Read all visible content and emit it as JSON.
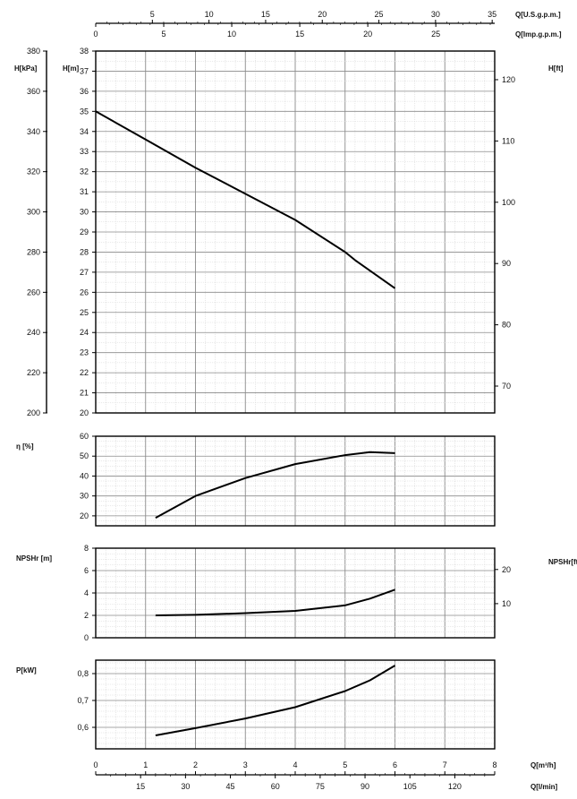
{
  "chart_data": [
    {
      "type": "line",
      "panel": "head",
      "ylabel": "H[m]",
      "ylim": [
        20,
        38
      ],
      "xlim": [
        0,
        8
      ],
      "left_axis_label": "H[kPa]",
      "left_axis_ticks": [
        "200",
        "220",
        "240",
        "260",
        "280",
        "300",
        "320",
        "340",
        "360",
        "380"
      ],
      "right_axis_label": "H[ft]",
      "right_axis_ticks": [
        "70",
        "80",
        "90",
        "100",
        "110",
        "120"
      ],
      "top_axes": [
        {
          "label": "Q[U.S.g.p.m.]",
          "ticks": [
            "5",
            "10",
            "15",
            "20",
            "25",
            "30",
            "35"
          ]
        },
        {
          "label": "Q[Imp.g.p.m.]",
          "ticks": [
            "0",
            "5",
            "10",
            "15",
            "20",
            "25"
          ]
        }
      ],
      "y_ticks": [
        "20",
        "21",
        "22",
        "23",
        "24",
        "25",
        "26",
        "27",
        "28",
        "29",
        "30",
        "31",
        "32",
        "33",
        "34",
        "35",
        "36",
        "37",
        "38"
      ],
      "grid": true,
      "series": [
        {
          "x": [
            0,
            1,
            2,
            3,
            4,
            5,
            5.2,
            6
          ],
          "y": [
            35,
            33.6,
            32.2,
            30.9,
            29.6,
            28.0,
            27.6,
            26.2
          ]
        }
      ]
    },
    {
      "type": "line",
      "panel": "efficiency",
      "ylabel": "η [%]",
      "ylim": [
        15,
        60
      ],
      "xlim": [
        0,
        8
      ],
      "y_ticks": [
        "20",
        "30",
        "40",
        "50",
        "60"
      ],
      "grid": true,
      "series": [
        {
          "x": [
            1.2,
            2,
            3,
            4,
            5,
            5.5,
            6
          ],
          "y": [
            19,
            30,
            39,
            46,
            50.5,
            52,
            51.5
          ]
        }
      ]
    },
    {
      "type": "line",
      "panel": "npsh",
      "ylabel": "NPSHr [m]",
      "ylim": [
        0,
        8
      ],
      "xlim": [
        0,
        8
      ],
      "y_ticks": [
        "0",
        "2",
        "4",
        "6",
        "8"
      ],
      "right_axis_label": "NPSHr[ft]",
      "right_axis_ticks": [
        "10",
        "20"
      ],
      "grid": true,
      "series": [
        {
          "x": [
            1.2,
            2,
            3,
            4,
            5,
            5.5,
            6
          ],
          "y": [
            2.0,
            2.05,
            2.2,
            2.4,
            2.9,
            3.5,
            4.3
          ]
        }
      ]
    },
    {
      "type": "line",
      "panel": "power",
      "ylabel": "P[kW]",
      "ylim": [
        0.52,
        0.85
      ],
      "xlim": [
        0,
        8
      ],
      "y_ticks": [
        "0,6",
        "0,7",
        "0,8"
      ],
      "grid": true,
      "x_axes": [
        {
          "label": "Q[m³/h]",
          "ticks": [
            "0",
            "1",
            "2",
            "3",
            "4",
            "5",
            "6",
            "7",
            "8"
          ]
        },
        {
          "label": "Q[l/min]",
          "ticks": [
            "15",
            "30",
            "45",
            "60",
            "75",
            "90",
            "105",
            "120"
          ]
        }
      ],
      "series": [
        {
          "x": [
            1.2,
            2,
            3,
            4,
            5,
            5.5,
            6
          ],
          "y": [
            0.57,
            0.597,
            0.633,
            0.675,
            0.735,
            0.775,
            0.83
          ]
        }
      ]
    }
  ]
}
